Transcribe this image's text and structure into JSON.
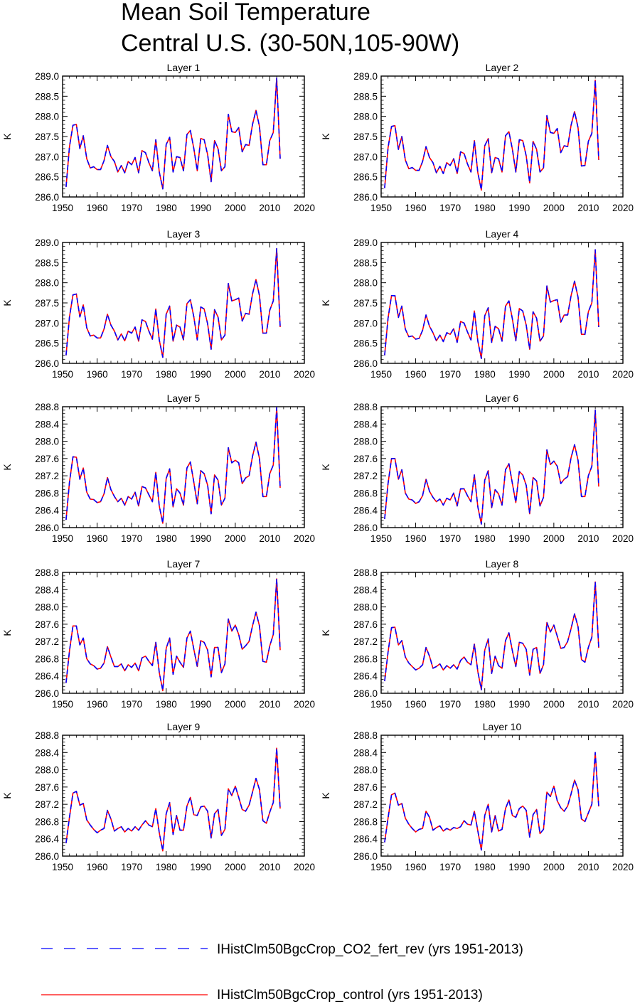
{
  "title_line1": "Mean Soil Temperature",
  "title_line2": "Central U.S. (30-50N,105-90W)",
  "legend": [
    {
      "label": "IHistClm50BgcCrop_CO2_fert_rev (yrs 1951-2013)",
      "color": "#0000ff",
      "dash": "dashed"
    },
    {
      "label": "IHistClm50BgcCrop_control (yrs 1951-2013)",
      "color": "#ff0000",
      "dash": "solid"
    }
  ],
  "chart_data": {
    "type": "line",
    "years": [
      1951,
      1952,
      1953,
      1954,
      1955,
      1956,
      1957,
      1958,
      1959,
      1960,
      1961,
      1962,
      1963,
      1964,
      1965,
      1966,
      1967,
      1968,
      1969,
      1970,
      1971,
      1972,
      1973,
      1974,
      1975,
      1976,
      1977,
      1978,
      1979,
      1980,
      1981,
      1982,
      1983,
      1984,
      1985,
      1986,
      1987,
      1988,
      1989,
      1990,
      1991,
      1992,
      1993,
      1994,
      1995,
      1996,
      1997,
      1998,
      1999,
      2000,
      2001,
      2002,
      2003,
      2004,
      2005,
      2006,
      2007,
      2008,
      2009,
      2010,
      2011,
      2012,
      2013
    ],
    "xlim": [
      1950,
      2020
    ],
    "xticks": [
      "1950",
      "1960",
      "1970",
      "1980",
      "1990",
      "2000",
      "2010",
      "2020"
    ],
    "ylabel": "K",
    "panels": [
      {
        "title": "Layer 1",
        "ylim": [
          286.0,
          289.0
        ],
        "yticks": [
          "286.0",
          "286.5",
          "287.0",
          "287.5",
          "288.0",
          "288.5",
          "289.0"
        ],
        "values": [
          286.25,
          287.25,
          287.78,
          287.8,
          287.2,
          287.52,
          286.95,
          286.72,
          286.75,
          286.68,
          286.68,
          286.9,
          287.28,
          287.0,
          286.88,
          286.62,
          286.78,
          286.6,
          286.88,
          286.8,
          286.98,
          286.6,
          287.15,
          287.1,
          286.85,
          286.65,
          287.42,
          286.62,
          286.2,
          287.3,
          287.48,
          286.62,
          287.0,
          286.98,
          286.65,
          287.55,
          287.65,
          287.2,
          286.65,
          287.45,
          287.42,
          287.05,
          286.38,
          287.4,
          287.2,
          286.65,
          286.75,
          288.05,
          287.62,
          287.6,
          287.72,
          287.12,
          287.3,
          287.28,
          287.8,
          288.15,
          287.75,
          286.8,
          286.8,
          287.4,
          287.6,
          288.95,
          286.95
        ]
      },
      {
        "title": "Layer 2",
        "ylim": [
          286.0,
          289.0
        ],
        "yticks": [
          "286.0",
          "286.5",
          "287.0",
          "287.5",
          "288.0",
          "288.5",
          "289.0"
        ],
        "values": [
          286.22,
          287.22,
          287.75,
          287.77,
          287.18,
          287.5,
          286.92,
          286.7,
          286.73,
          286.66,
          286.66,
          286.88,
          287.25,
          286.98,
          286.85,
          286.6,
          286.76,
          286.58,
          286.85,
          286.78,
          286.95,
          286.58,
          287.12,
          287.08,
          286.82,
          286.62,
          287.4,
          286.6,
          286.17,
          287.27,
          287.45,
          286.6,
          286.98,
          286.95,
          286.62,
          287.52,
          287.62,
          287.18,
          286.62,
          287.42,
          287.4,
          287.02,
          286.35,
          287.38,
          287.18,
          286.62,
          286.72,
          288.02,
          287.6,
          287.58,
          287.7,
          287.1,
          287.27,
          287.25,
          287.78,
          288.12,
          287.72,
          286.77,
          286.78,
          287.38,
          287.58,
          288.9,
          286.92
        ]
      },
      {
        "title": "Layer 3",
        "ylim": [
          286.0,
          289.0
        ],
        "yticks": [
          "286.0",
          "286.5",
          "287.0",
          "287.5",
          "288.0",
          "288.5",
          "289.0"
        ],
        "values": [
          286.2,
          287.15,
          287.7,
          287.72,
          287.15,
          287.45,
          286.88,
          286.68,
          286.7,
          286.63,
          286.63,
          286.85,
          287.22,
          286.95,
          286.8,
          286.58,
          286.73,
          286.56,
          286.8,
          286.75,
          286.9,
          286.55,
          287.08,
          287.04,
          286.8,
          286.6,
          287.35,
          286.58,
          286.15,
          287.22,
          287.42,
          286.55,
          286.95,
          286.9,
          286.58,
          287.48,
          287.58,
          287.15,
          286.58,
          287.4,
          287.35,
          286.98,
          286.35,
          287.33,
          287.15,
          286.58,
          286.7,
          287.98,
          287.55,
          287.58,
          287.62,
          287.05,
          287.24,
          287.22,
          287.72,
          288.08,
          287.68,
          286.75,
          286.75,
          287.32,
          287.55,
          288.85,
          286.9
        ]
      },
      {
        "title": "Layer 4",
        "ylim": [
          286.0,
          289.0
        ],
        "yticks": [
          "286.0",
          "286.5",
          "287.0",
          "287.5",
          "288.0",
          "288.5",
          "289.0"
        ],
        "values": [
          286.2,
          287.12,
          287.68,
          287.68,
          287.14,
          287.42,
          286.85,
          286.66,
          286.68,
          286.6,
          286.62,
          286.82,
          287.2,
          286.92,
          286.76,
          286.56,
          286.7,
          286.54,
          286.76,
          286.72,
          286.86,
          286.52,
          287.04,
          287.0,
          286.78,
          286.58,
          287.3,
          286.55,
          286.12,
          287.18,
          287.38,
          286.52,
          286.92,
          286.86,
          286.55,
          287.42,
          287.55,
          287.1,
          286.56,
          287.36,
          287.3,
          286.95,
          286.35,
          287.28,
          287.12,
          286.55,
          286.68,
          287.92,
          287.52,
          287.56,
          287.58,
          287.02,
          287.2,
          287.2,
          287.68,
          288.04,
          287.64,
          286.72,
          286.72,
          287.28,
          287.5,
          288.82,
          286.9
        ]
      },
      {
        "title": "Layer 5",
        "ylim": [
          286.0,
          288.8
        ],
        "yticks": [
          "286.0",
          "286.4",
          "286.8",
          "287.2",
          "287.6",
          "288.0",
          "288.4",
          "288.8"
        ],
        "values": [
          286.18,
          287.05,
          287.64,
          287.63,
          287.12,
          287.38,
          286.82,
          286.66,
          286.65,
          286.58,
          286.6,
          286.78,
          287.16,
          286.88,
          286.72,
          286.6,
          286.68,
          286.52,
          286.72,
          286.66,
          286.82,
          286.5,
          286.95,
          286.92,
          286.76,
          286.6,
          287.28,
          286.5,
          286.1,
          287.14,
          287.36,
          286.48,
          286.9,
          286.8,
          286.52,
          287.38,
          287.52,
          287.05,
          286.55,
          287.32,
          287.25,
          286.98,
          286.32,
          287.22,
          287.1,
          286.52,
          286.68,
          287.85,
          287.5,
          287.56,
          287.5,
          287.02,
          287.15,
          287.2,
          287.65,
          287.98,
          287.6,
          286.72,
          286.72,
          287.25,
          287.45,
          288.78,
          286.92
        ]
      },
      {
        "title": "Layer 6",
        "ylim": [
          286.0,
          288.8
        ],
        "yticks": [
          "286.0",
          "286.4",
          "286.8",
          "287.2",
          "287.6",
          "288.0",
          "288.4",
          "288.8"
        ],
        "values": [
          286.2,
          287.02,
          287.6,
          287.6,
          287.12,
          287.34,
          286.8,
          286.66,
          286.64,
          286.56,
          286.6,
          286.74,
          287.12,
          286.84,
          286.7,
          286.6,
          286.66,
          286.52,
          286.68,
          286.64,
          286.8,
          286.5,
          286.9,
          286.9,
          286.74,
          286.6,
          287.22,
          286.48,
          286.08,
          287.1,
          287.32,
          286.46,
          286.88,
          286.78,
          286.52,
          287.34,
          287.48,
          287.02,
          286.58,
          287.3,
          287.22,
          286.98,
          286.32,
          287.16,
          287.08,
          286.5,
          286.7,
          287.8,
          287.46,
          287.54,
          287.42,
          287.02,
          287.12,
          287.18,
          287.62,
          287.92,
          287.56,
          286.72,
          286.72,
          287.2,
          287.42,
          288.72,
          286.95
        ]
      },
      {
        "title": "Layer 7",
        "ylim": [
          286.0,
          288.8
        ],
        "yticks": [
          "286.0",
          "286.4",
          "286.8",
          "287.2",
          "287.6",
          "288.0",
          "288.4",
          "288.8"
        ],
        "values": [
          286.24,
          286.98,
          287.56,
          287.56,
          287.12,
          287.28,
          286.8,
          286.68,
          286.64,
          286.56,
          286.58,
          286.7,
          287.08,
          286.84,
          286.62,
          286.62,
          286.68,
          286.52,
          286.66,
          286.6,
          286.7,
          286.52,
          286.82,
          286.86,
          286.74,
          286.64,
          287.18,
          286.48,
          286.06,
          287.04,
          287.28,
          286.44,
          286.86,
          286.72,
          286.6,
          287.28,
          287.44,
          287.02,
          286.62,
          287.22,
          287.18,
          287.0,
          286.38,
          287.06,
          287.06,
          286.48,
          286.68,
          287.72,
          287.44,
          287.58,
          287.36,
          287.02,
          287.1,
          287.2,
          287.56,
          287.88,
          287.56,
          286.74,
          286.72,
          287.1,
          287.36,
          288.65,
          287.0
        ]
      },
      {
        "title": "Layer 8",
        "ylim": [
          286.0,
          288.8
        ],
        "yticks": [
          "286.0",
          "286.4",
          "286.8",
          "287.2",
          "287.6",
          "288.0",
          "288.4",
          "288.8"
        ],
        "values": [
          286.28,
          286.95,
          287.52,
          287.53,
          287.12,
          287.22,
          286.84,
          286.7,
          286.62,
          286.54,
          286.58,
          286.66,
          287.06,
          286.86,
          286.58,
          286.62,
          286.68,
          286.54,
          286.64,
          286.58,
          286.66,
          286.56,
          286.76,
          286.84,
          286.72,
          286.66,
          287.14,
          286.5,
          286.08,
          287.0,
          287.26,
          286.46,
          286.86,
          286.64,
          286.58,
          287.22,
          287.4,
          286.98,
          286.62,
          287.18,
          287.16,
          287.02,
          286.42,
          287.02,
          287.06,
          286.46,
          286.66,
          287.64,
          287.42,
          287.58,
          287.32,
          287.04,
          287.06,
          287.2,
          287.5,
          287.84,
          287.54,
          286.78,
          286.72,
          287.06,
          287.3,
          288.58,
          287.05
        ]
      },
      {
        "title": "Layer 9",
        "ylim": [
          286.0,
          288.8
        ],
        "yticks": [
          "286.0",
          "286.4",
          "286.8",
          "287.2",
          "287.6",
          "288.0",
          "288.4",
          "288.8"
        ],
        "values": [
          286.3,
          286.9,
          287.46,
          287.5,
          287.18,
          287.22,
          286.84,
          286.72,
          286.62,
          286.54,
          286.6,
          286.64,
          287.06,
          286.86,
          286.58,
          286.64,
          286.68,
          286.56,
          286.64,
          286.58,
          286.68,
          286.6,
          286.72,
          286.82,
          286.72,
          286.68,
          287.1,
          286.54,
          286.12,
          286.98,
          287.24,
          286.5,
          286.94,
          286.6,
          286.6,
          287.16,
          287.36,
          286.96,
          286.94,
          287.14,
          287.16,
          287.04,
          286.42,
          286.98,
          287.08,
          286.48,
          286.62,
          287.56,
          287.4,
          287.62,
          287.36,
          287.08,
          287.04,
          287.18,
          287.48,
          287.8,
          287.54,
          286.82,
          286.76,
          287.02,
          287.24,
          288.5,
          287.1
        ]
      },
      {
        "title": "Layer 10",
        "ylim": [
          286.0,
          288.8
        ],
        "yticks": [
          "286.0",
          "286.4",
          "286.8",
          "287.2",
          "287.6",
          "288.0",
          "288.4",
          "288.8"
        ],
        "values": [
          286.32,
          286.88,
          287.42,
          287.46,
          287.18,
          287.22,
          286.88,
          286.74,
          286.64,
          286.56,
          286.62,
          286.64,
          287.04,
          286.9,
          286.6,
          286.66,
          286.7,
          286.58,
          286.64,
          286.6,
          286.66,
          286.64,
          286.68,
          286.82,
          286.74,
          286.72,
          287.04,
          286.58,
          286.14,
          286.94,
          287.2,
          286.56,
          286.94,
          286.58,
          286.62,
          287.1,
          287.3,
          286.94,
          286.9,
          287.1,
          287.16,
          287.06,
          286.44,
          286.96,
          287.08,
          286.52,
          286.62,
          287.48,
          287.38,
          287.62,
          287.28,
          287.12,
          287.04,
          287.16,
          287.44,
          287.76,
          287.54,
          286.86,
          286.8,
          287.0,
          287.2,
          288.4,
          287.15
        ]
      }
    ]
  }
}
